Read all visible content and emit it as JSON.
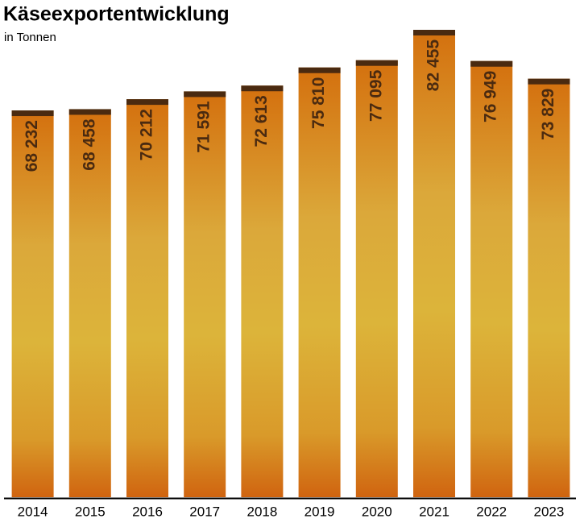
{
  "chart_data": {
    "type": "bar",
    "title": "Käseexportentwicklung",
    "subtitle": "in Tonnen",
    "categories": [
      "2014",
      "2015",
      "2016",
      "2017",
      "2018",
      "2019",
      "2020",
      "2021",
      "2022",
      "2023"
    ],
    "values": [
      68232,
      68458,
      70212,
      71591,
      72613,
      75810,
      77095,
      82455,
      76949,
      73829
    ],
    "value_labels": [
      "68 232",
      "68 458",
      "70 212",
      "71 591",
      "72 613",
      "75 810",
      "77 095",
      "82 455",
      "76 949",
      "73 829"
    ],
    "color": "#dcb43a"
  }
}
